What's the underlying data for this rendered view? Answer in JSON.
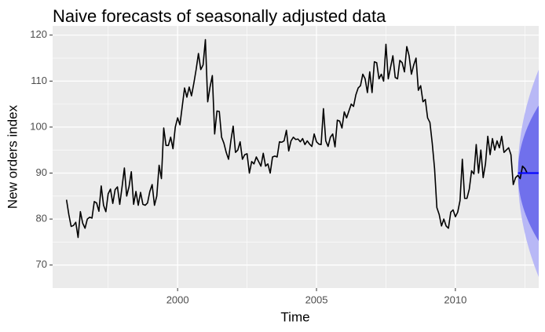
{
  "chart_data": {
    "type": "line",
    "title": "Naive forecasts of seasonally adjusted data",
    "xlabel": "Time",
    "ylabel": "New orders index",
    "xlim": [
      1995.5,
      2013.0
    ],
    "ylim": [
      65,
      122
    ],
    "x_ticks": [
      2000,
      2005,
      2010
    ],
    "y_ticks": [
      70,
      80,
      90,
      100,
      110,
      120
    ],
    "grid": true,
    "legend": "none",
    "colors": {
      "panel": "#ebebeb",
      "grid": "#ffffff",
      "history": "#000000",
      "forecast": "#0000ff",
      "band80": "#7070ec",
      "band95": "#b8b8f6"
    },
    "history": {
      "start": 1996.0,
      "frequency": 12,
      "values": [
        84.2,
        81.0,
        78.4,
        78.6,
        79.3,
        76.0,
        81.6,
        79.1,
        78.0,
        80.0,
        80.4,
        80.2,
        83.8,
        83.5,
        81.7,
        87.2,
        83.0,
        81.6,
        85.5,
        86.5,
        83.4,
        86.4,
        87.0,
        83.2,
        87.0,
        91.1,
        85.0,
        87.0,
        90.3,
        83.2,
        86.0,
        83.0,
        85.8,
        83.2,
        83.0,
        83.5,
        86.0,
        87.5,
        83.0,
        85.0,
        91.7,
        88.8,
        99.8,
        96.0,
        96.0,
        97.8,
        95.3,
        100.0,
        102.0,
        100.5,
        104.5,
        108.5,
        106.5,
        108.7,
        106.8,
        109.5,
        112.5,
        116.0,
        112.5,
        113.5,
        119.0,
        105.5,
        108.7,
        111.2,
        98.5,
        103.5,
        103.4,
        97.8,
        96.5,
        94.5,
        93.0,
        97.0,
        100.2,
        94.5,
        95.0,
        96.8,
        93.0,
        94.0,
        94.2,
        90.0,
        92.5,
        92.0,
        93.5,
        92.5,
        91.5,
        94.3,
        91.5,
        92.0,
        90.0,
        93.5,
        93.7,
        93.5,
        96.8,
        96.7,
        97.0,
        99.3,
        94.8,
        97.0,
        97.8,
        97.3,
        97.4,
        96.8,
        97.5,
        96.2,
        97.0,
        96.3,
        95.8,
        98.5,
        96.8,
        96.3,
        96.2,
        104.0,
        97.0,
        95.8,
        97.8,
        98.5,
        95.7,
        101.5,
        101.3,
        99.8,
        103.3,
        102.0,
        103.5,
        105.0,
        104.5,
        107.0,
        108.5,
        109.0,
        111.5,
        110.5,
        107.5,
        112.0,
        107.5,
        114.2,
        114.0,
        110.5,
        111.5,
        110.0,
        118.0,
        110.5,
        113.0,
        115.5,
        110.8,
        110.5,
        114.5,
        114.0,
        112.0,
        117.5,
        115.5,
        111.5,
        113.5,
        115.0,
        108.0,
        109.0,
        105.5,
        106.0,
        102.0,
        101.0,
        96.5,
        91.0,
        82.5,
        81.0,
        78.5,
        80.0,
        78.5,
        78.0,
        81.5,
        82.0,
        80.5,
        81.5,
        84.0,
        93.0,
        84.5,
        84.5,
        86.5,
        90.5,
        89.8,
        96.2,
        90.0,
        95.0,
        89.0,
        92.0,
        98.0,
        94.0,
        97.5,
        95.0,
        97.0,
        95.5,
        98.0,
        94.5,
        95.0,
        95.5,
        94.0,
        87.5,
        89.0,
        89.5,
        88.8,
        91.5,
        91.0,
        90.0
      ]
    },
    "forecast": {
      "start": 2012.25,
      "end": 2013.0,
      "point": 90.0,
      "lo80_end": 75.2,
      "hi80_end": 104.7,
      "lo95_end": 67.4,
      "hi95_end": 112.5
    }
  }
}
